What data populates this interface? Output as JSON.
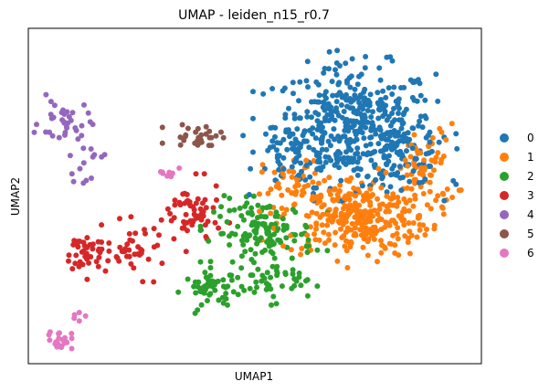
{
  "chart_data": {
    "type": "scatter",
    "title": "UMAP - leiden_n15_r0.7",
    "xlabel": "UMAP1",
    "ylabel": "UMAP2",
    "xlim": [
      0,
      100
    ],
    "ylim": [
      0,
      100
    ],
    "grid": false,
    "ticks_shown": false,
    "legend_position": "right",
    "series": [
      {
        "name": "0",
        "color": "#1f77b4",
        "clusters": [
          {
            "cx": 72,
            "cy": 71,
            "rx": 16,
            "ry": 16,
            "n": 420
          },
          {
            "cx": 60,
            "cy": 63,
            "rx": 9,
            "ry": 9,
            "n": 60
          },
          {
            "cx": 82,
            "cy": 61,
            "rx": 9,
            "ry": 7,
            "n": 70
          }
        ]
      },
      {
        "name": "1",
        "color": "#ff7f0e",
        "clusters": [
          {
            "cx": 72,
            "cy": 44,
            "rx": 15,
            "ry": 11,
            "n": 330
          },
          {
            "cx": 88,
            "cy": 58,
            "rx": 6,
            "ry": 12,
            "n": 60
          },
          {
            "cx": 58,
            "cy": 56,
            "rx": 6,
            "ry": 5,
            "n": 30
          }
        ]
      },
      {
        "name": "2",
        "color": "#2ca02c",
        "clusters": [
          {
            "cx": 52,
            "cy": 39,
            "rx": 10,
            "ry": 9,
            "n": 140
          },
          {
            "cx": 41,
            "cy": 22,
            "rx": 6,
            "ry": 5,
            "n": 50
          },
          {
            "cx": 54,
            "cy": 24,
            "rx": 7,
            "ry": 5,
            "n": 40
          }
        ]
      },
      {
        "name": "3",
        "color": "#d62728",
        "clusters": [
          {
            "cx": 13,
            "cy": 33,
            "rx": 5,
            "ry": 6,
            "n": 45
          },
          {
            "cx": 24,
            "cy": 34,
            "rx": 6,
            "ry": 7,
            "n": 40
          },
          {
            "cx": 36,
            "cy": 44,
            "rx": 6,
            "ry": 9,
            "n": 60
          }
        ]
      },
      {
        "name": "4",
        "color": "#9467bd",
        "clusters": [
          {
            "cx": 8,
            "cy": 72,
            "rx": 5,
            "ry": 6,
            "n": 35
          },
          {
            "cx": 12,
            "cy": 60,
            "rx": 4,
            "ry": 5,
            "n": 15
          }
        ]
      },
      {
        "name": "5",
        "color": "#8c564b",
        "clusters": [
          {
            "cx": 38,
            "cy": 68,
            "rx": 6,
            "ry": 3.5,
            "n": 30
          }
        ]
      },
      {
        "name": "6",
        "color": "#e377c2",
        "clusters": [
          {
            "cx": 7,
            "cy": 7,
            "rx": 2.5,
            "ry": 2.5,
            "n": 22
          },
          {
            "cx": 31,
            "cy": 57,
            "rx": 2,
            "ry": 2,
            "n": 8
          },
          {
            "cx": 11,
            "cy": 15,
            "rx": 2,
            "ry": 3,
            "n": 5
          }
        ]
      }
    ]
  }
}
